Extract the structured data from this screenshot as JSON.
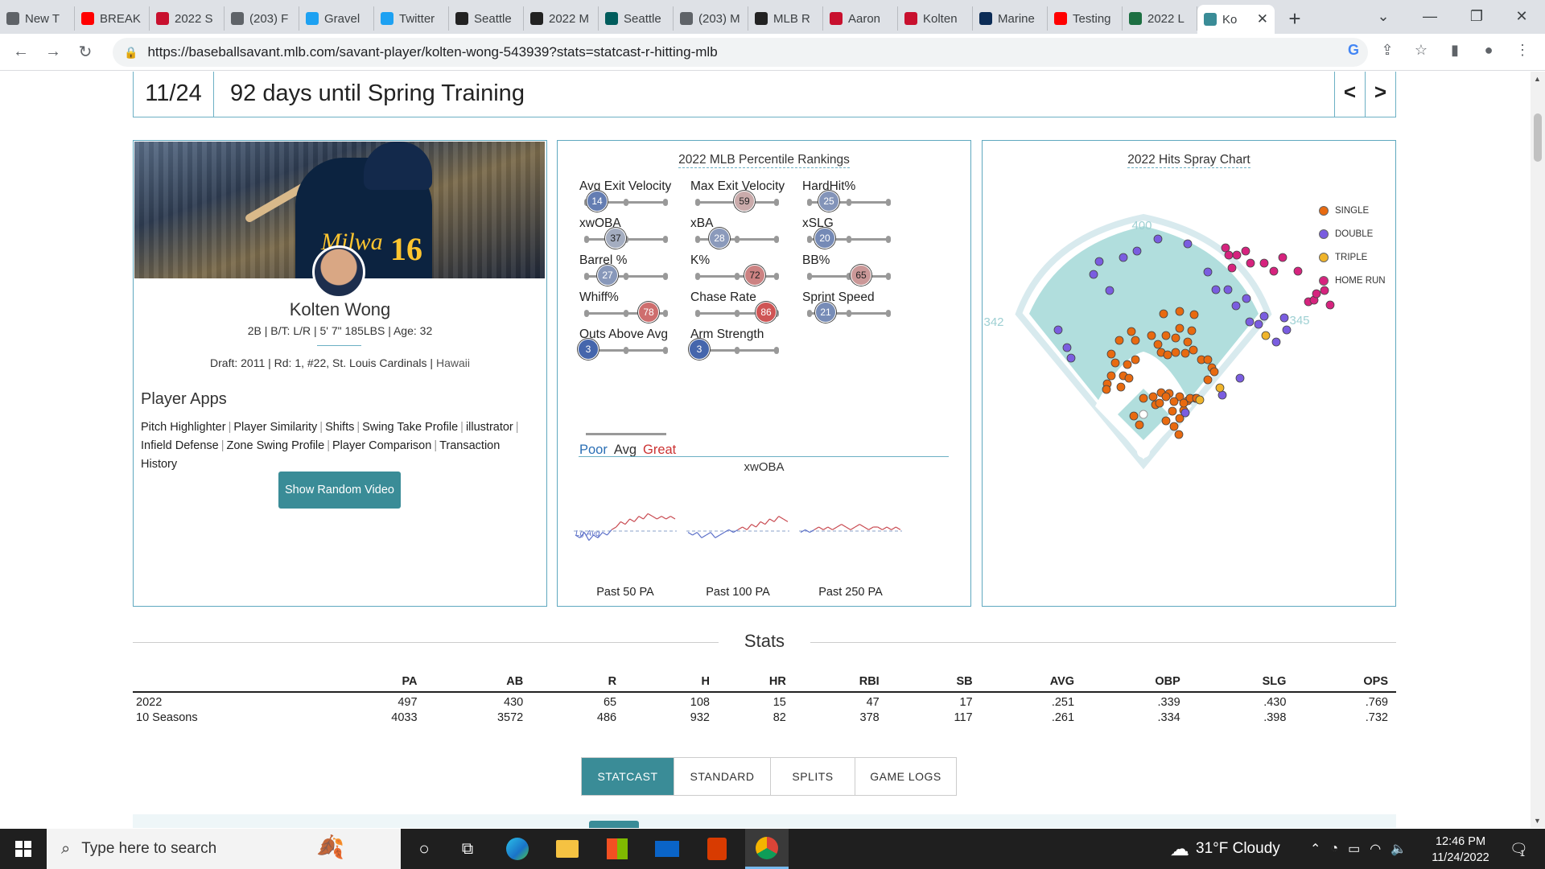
{
  "browser": {
    "tabs": [
      {
        "label": "New T",
        "color": "#5f6368"
      },
      {
        "label": "BREAK",
        "color": "#ff0000"
      },
      {
        "label": "2022 S",
        "color": "#c8102e"
      },
      {
        "label": "(203) F",
        "color": "#5f6368"
      },
      {
        "label": "Gravel",
        "color": "#1da1f2"
      },
      {
        "label": "Twitter",
        "color": "#1da1f2"
      },
      {
        "label": "Seattle",
        "color": "#222222"
      },
      {
        "label": "2022 M",
        "color": "#222222"
      },
      {
        "label": "Seattle",
        "color": "#005c5c"
      },
      {
        "label": "(203) M",
        "color": "#5f6368"
      },
      {
        "label": "MLB R",
        "color": "#222222"
      },
      {
        "label": "Aaron",
        "color": "#c8102e"
      },
      {
        "label": "Kolten",
        "color": "#c8102e"
      },
      {
        "label": "Marine",
        "color": "#0c2c56"
      },
      {
        "label": "Testing",
        "color": "#ff0000"
      },
      {
        "label": "2022 L",
        "color": "#1d6f42"
      }
    ],
    "active_tab": {
      "label": "Ko",
      "color": "#3a8c97"
    },
    "url": "https://baseballsavant.mlb.com/savant-player/kolten-wong-543939?stats=statcast-r-hitting-mlb"
  },
  "countdown": {
    "date": "11/24",
    "text": "92 days until Spring Training",
    "prev": "<",
    "next": ">"
  },
  "player": {
    "photo_number": "16",
    "photo_brand": "Milwa",
    "name": "Kolten Wong",
    "info": "2B | B/T: L/R | 5' 7\" 185LBS | Age: 32",
    "draft": "Draft: 2011 | Rd: 1, #22, St. Louis Cardinals |",
    "college": "Hawaii",
    "apps_title": "Player Apps",
    "apps": [
      "Pitch Highlighter",
      "Player Similarity",
      "Shifts",
      "Swing Take Profile",
      "illustrator",
      "Infield Defense",
      "Zone Swing Profile",
      "Player Comparison",
      "Transaction History"
    ],
    "video_button": "Show Random Video"
  },
  "percentiles": {
    "title": "2022 MLB Percentile Rankings",
    "metrics": [
      {
        "label": "Avg Exit Velocity",
        "value": 14
      },
      {
        "label": "Max Exit Velocity",
        "value": 59
      },
      {
        "label": "HardHit%",
        "value": 25
      },
      {
        "label": "xwOBA",
        "value": 37
      },
      {
        "label": "xBA",
        "value": 28
      },
      {
        "label": "xSLG",
        "value": 20
      },
      {
        "label": "Barrel %",
        "value": 27
      },
      {
        "label": "K%",
        "value": 72
      },
      {
        "label": "BB%",
        "value": 65
      },
      {
        "label": "Whiff%",
        "value": 78
      },
      {
        "label": "Chase Rate",
        "value": 86
      },
      {
        "label": "Sprint Speed",
        "value": 21
      },
      {
        "label": "Outs Above Avg",
        "value": 3
      },
      {
        "label": "Arm Strength",
        "value": 3
      }
    ],
    "legend": {
      "poor": "Poor",
      "avg": "Avg",
      "great": "Great"
    },
    "xwoba_title": "xwOBA",
    "sparklines": [
      {
        "label": "Past 50 PA",
        "lg_label": "Lg Avg",
        "values": [
          0.3,
          0.29,
          0.31,
          0.28,
          0.3,
          0.29,
          0.31,
          0.3,
          0.32,
          0.33,
          0.35,
          0.34,
          0.36,
          0.35,
          0.37,
          0.36,
          0.38,
          0.37,
          0.36,
          0.37,
          0.36,
          0.37,
          0.36
        ]
      },
      {
        "label": "Past 100 PA",
        "lg_label": "",
        "values": [
          0.31,
          0.3,
          0.31,
          0.29,
          0.3,
          0.31,
          0.29,
          0.3,
          0.31,
          0.32,
          0.31,
          0.32,
          0.33,
          0.32,
          0.34,
          0.33,
          0.35,
          0.34,
          0.36,
          0.35,
          0.37,
          0.36,
          0.35
        ]
      },
      {
        "label": "Past 250 PA",
        "lg_label": "",
        "values": [
          0.31,
          0.32,
          0.31,
          0.32,
          0.33,
          0.32,
          0.33,
          0.32,
          0.33,
          0.34,
          0.33,
          0.32,
          0.33,
          0.34,
          0.33,
          0.32,
          0.33,
          0.33,
          0.32,
          0.33,
          0.32,
          0.33,
          0.32
        ]
      }
    ]
  },
  "spray": {
    "title": "2022 Hits Spray Chart",
    "dist_left": "342",
    "dist_center": "400",
    "dist_right": "345",
    "legend": [
      {
        "label": "SINGLE",
        "color": "#e86a10"
      },
      {
        "label": "DOUBLE",
        "color": "#7a5de0"
      },
      {
        "label": "TRIPLE",
        "color": "#f0b42a"
      },
      {
        "label": "HOME RUN",
        "color": "#d6237e"
      }
    ]
  },
  "stats": {
    "title": "Stats",
    "columns": [
      "",
      "PA",
      "AB",
      "R",
      "H",
      "HR",
      "RBI",
      "SB",
      "AVG",
      "OBP",
      "SLG",
      "OPS"
    ],
    "rows": [
      [
        "2022",
        "497",
        "430",
        "65",
        "108",
        "15",
        "47",
        "17",
        ".251",
        ".339",
        ".430",
        ".769"
      ],
      [
        "10 Seasons",
        "4033",
        "3572",
        "486",
        "932",
        "82",
        "378",
        "117",
        ".261",
        ".334",
        ".398",
        ".732"
      ]
    ],
    "tabs": [
      "STATCAST",
      "STANDARD",
      "SPLITS",
      "GAME LOGS"
    ]
  },
  "taskbar": {
    "search_placeholder": "Type here to search",
    "weather": "31°F  Cloudy",
    "time": "12:46 PM",
    "date": "11/24/2022",
    "notifications": "1"
  },
  "colors": {
    "accent": "#3a8c97",
    "poor": "#2b6fb5",
    "great": "#c33333"
  }
}
